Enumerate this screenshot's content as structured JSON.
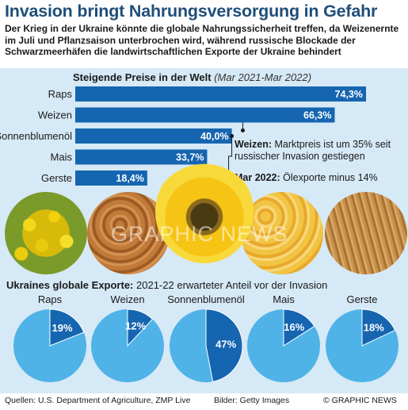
{
  "title": "Invasion bringt Nahrungsversorgung in Gefahr",
  "subtitle": "Der Krieg in der Ukraine könnte die globale Nahrungssicherheit treffen, da Weizenernte im Juli und Pflanzsaison unterbrochen wird, während russische Blockade der Schwarzmeerhäfen die landwirtschaftlichen Exporte der Ukraine behindert",
  "prices_heading": {
    "bold": "Steigende Preise in der Welt",
    "italic": "(Mar 2021-Mar 2022)"
  },
  "exports_heading": {
    "bold": "Ukraines globale Exporte:",
    "rest": "2021-22 erwarteter Anteil vor der Invasion"
  },
  "notes": {
    "wheat_bold": "Weizen:",
    "wheat_text": "Marktpreis ist um 35% seit russischer Invasion gestiegen",
    "oil_bold": "Mar 2022:",
    "oil_text": "Ölexporte minus 14%"
  },
  "watermark": "GRAPHIC NEWS",
  "footer": {
    "sources": "Quellen: U.S. Department of Agriculture, ZMP Live",
    "images": "Bilder: Getty Images",
    "copyright": "© GRAPHIC NEWS"
  },
  "colors": {
    "title": "#1f4e79",
    "bar": "#1565b0",
    "panel": "#d6e9f6",
    "pie_light": "#4fb3e8",
    "pie_dark": "#1565b0"
  },
  "chart_data": [
    {
      "type": "bar",
      "orientation": "horizontal",
      "title": "Steigende Preise in der Welt",
      "subtitle": "(Mar 2021-Mar 2022)",
      "categories": [
        "Raps",
        "Weizen",
        "Sonnenblumenöl",
        "Mais",
        "Gerste"
      ],
      "values": [
        74.3,
        66.3,
        40.0,
        33.7,
        18.4
      ],
      "labels": [
        "74,3%",
        "66,3%",
        "40,0%",
        "33,7%",
        "18,4%"
      ],
      "xlim": [
        0,
        74.3
      ]
    },
    {
      "type": "pie",
      "title": "Ukraines globale Exporte: 2021-22 erwarteter Anteil vor der Invasion",
      "categories": [
        "Raps",
        "Weizen",
        "Sonnenblumenöl",
        "Mais",
        "Gerste"
      ],
      "values": [
        19,
        12,
        47,
        16,
        18
      ],
      "labels": [
        "19%",
        "12%",
        "47%",
        "16%",
        "18%"
      ]
    }
  ]
}
